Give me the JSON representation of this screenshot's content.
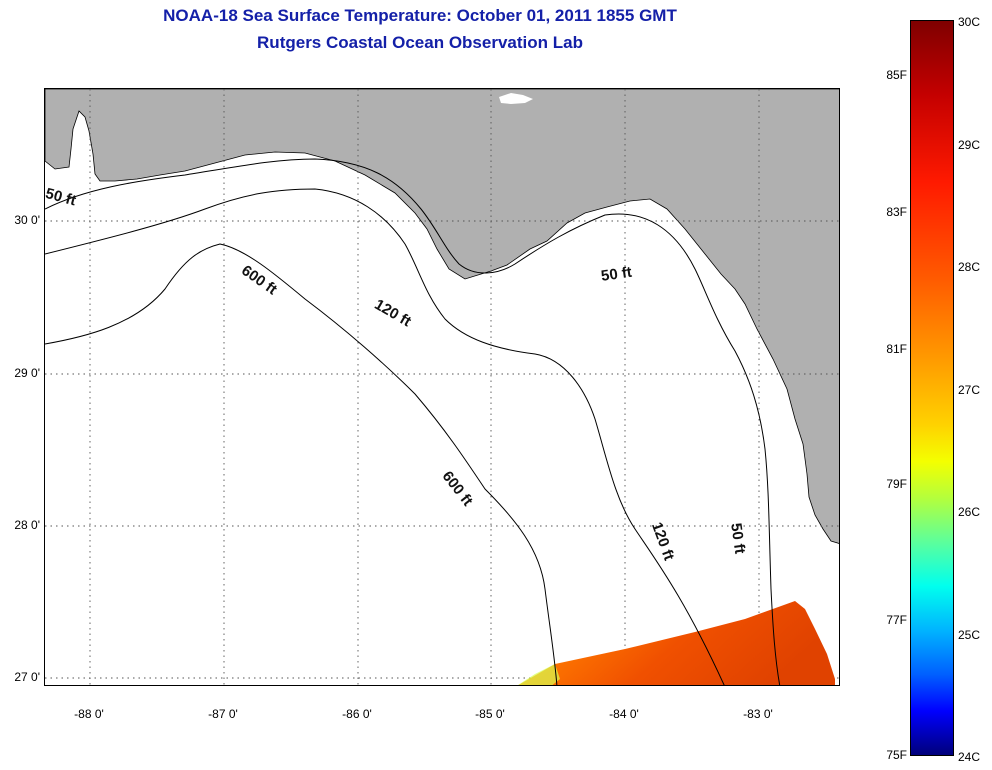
{
  "title": "NOAA-18 Sea Surface Temperature:  October 01, 2011 1855 GMT",
  "subtitle": "Rutgers Coastal Ocean Observation Lab",
  "colors": {
    "title": "#1420a8",
    "land": "#b0b0b0",
    "ocean": "#ffffff",
    "grid": "#555555"
  },
  "map": {
    "lon_range": [
      -88.33,
      -82.33
    ],
    "lat_range": [
      26.95,
      30.85
    ],
    "x_ticks": [
      "-88 0'",
      "-87 0'",
      "-86 0'",
      "-85 0'",
      "-84 0'",
      "-83 0'"
    ],
    "y_ticks": [
      "30 0'",
      "29 0'",
      "28 0'",
      "27 0'"
    ],
    "contour_labels": [
      "50 ft",
      "600 ft",
      "120 ft",
      "50 ft",
      "600 ft",
      "120 ft",
      "50 ft"
    ],
    "sst_swath": "satellite SST swath, southeast corner (approx. 28-29C)"
  },
  "colorbar": {
    "celsius": [
      "30C",
      "29C",
      "28C",
      "27C",
      "26C",
      "25C",
      "24C"
    ],
    "fahrenheit": [
      "85F",
      "83F",
      "81F",
      "79F",
      "77F",
      "75F"
    ]
  }
}
